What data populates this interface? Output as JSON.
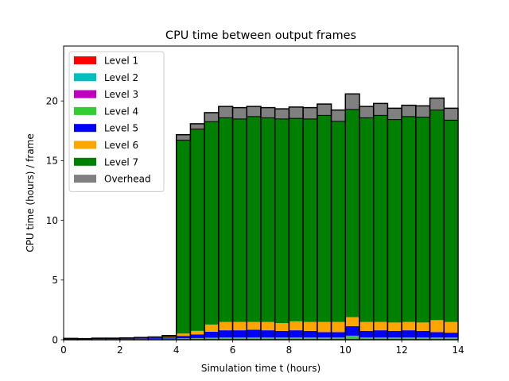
{
  "chart_data": {
    "type": "bar",
    "stacked": true,
    "title": "CPU time between output frames",
    "xlabel": "Simulation time t (hours)",
    "ylabel": "CPU time (hours) / frame",
    "xlim": [
      0,
      14
    ],
    "ylim": [
      0,
      24.6
    ],
    "xticks": [
      "0",
      "2",
      "4",
      "6",
      "8",
      "10",
      "12",
      "14"
    ],
    "xtick_values": [
      0,
      2,
      4,
      6,
      8,
      10,
      12,
      14
    ],
    "yticks": [
      "0",
      "5",
      "10",
      "15",
      "20"
    ],
    "ytick_values": [
      0,
      5,
      10,
      15,
      20
    ],
    "grid": false,
    "legend_position": "upper-left",
    "bin_width": 0.5,
    "x": [
      0,
      0.5,
      1,
      1.5,
      2,
      2.5,
      3,
      3.5,
      4,
      4.5,
      5,
      5.5,
      6,
      6.5,
      7,
      7.5,
      8,
      8.5,
      9,
      9.5,
      10,
      10.5,
      11,
      11.5,
      12,
      12.5,
      13,
      13.5
    ],
    "series": [
      {
        "name": "Level 1",
        "color": "#ff0000",
        "values": [
          0.03,
          0.02,
          0.03,
          0.03,
          0.03,
          0.04,
          0.04,
          0.05,
          0.05,
          0.05,
          0.05,
          0.05,
          0.05,
          0.05,
          0.05,
          0.05,
          0.05,
          0.05,
          0.05,
          0.05,
          0.05,
          0.05,
          0.05,
          0.05,
          0.05,
          0.05,
          0.05,
          0.05
        ]
      },
      {
        "name": "Level 2",
        "color": "#00bfbf",
        "values": [
          0.01,
          0.01,
          0.01,
          0.01,
          0.01,
          0.01,
          0.01,
          0.01,
          0.02,
          0.02,
          0.02,
          0.02,
          0.02,
          0.02,
          0.02,
          0.02,
          0.02,
          0.02,
          0.02,
          0.02,
          0.02,
          0.02,
          0.02,
          0.02,
          0.02,
          0.02,
          0.02,
          0.02
        ]
      },
      {
        "name": "Level 3",
        "color": "#bf00bf",
        "values": [
          0.01,
          0.01,
          0.01,
          0.01,
          0.01,
          0.01,
          0.01,
          0.01,
          0.02,
          0.02,
          0.02,
          0.02,
          0.02,
          0.02,
          0.02,
          0.02,
          0.02,
          0.02,
          0.02,
          0.02,
          0.02,
          0.02,
          0.02,
          0.02,
          0.02,
          0.02,
          0.02,
          0.02
        ]
      },
      {
        "name": "Level 4",
        "color": "#32cd32",
        "values": [
          0.01,
          0.01,
          0.01,
          0.01,
          0.01,
          0.01,
          0.01,
          0.02,
          0.03,
          0.05,
          0.08,
          0.1,
          0.1,
          0.1,
          0.1,
          0.1,
          0.1,
          0.1,
          0.1,
          0.1,
          0.25,
          0.1,
          0.1,
          0.1,
          0.1,
          0.1,
          0.1,
          0.1
        ]
      },
      {
        "name": "Level 5",
        "color": "#0000ff",
        "values": [
          0.01,
          0.01,
          0.02,
          0.02,
          0.03,
          0.04,
          0.06,
          0.1,
          0.2,
          0.3,
          0.5,
          0.6,
          0.6,
          0.65,
          0.6,
          0.55,
          0.6,
          0.55,
          0.45,
          0.45,
          0.8,
          0.55,
          0.6,
          0.55,
          0.6,
          0.55,
          0.45,
          0.4
        ]
      },
      {
        "name": "Level 6",
        "color": "#ffa500",
        "values": [
          0.01,
          0.01,
          0.02,
          0.02,
          0.03,
          0.04,
          0.05,
          0.08,
          0.2,
          0.3,
          0.6,
          0.7,
          0.7,
          0.65,
          0.7,
          0.65,
          0.75,
          0.75,
          0.85,
          0.85,
          0.75,
          0.75,
          0.7,
          0.7,
          0.7,
          0.7,
          1.0,
          0.9
        ]
      },
      {
        "name": "Level 7",
        "color": "#008000",
        "values": [
          0.0,
          0.0,
          0.0,
          0.0,
          0.0,
          0.0,
          0.0,
          0.0,
          16.2,
          16.9,
          17.0,
          17.1,
          17.0,
          17.2,
          17.1,
          17.1,
          17.0,
          17.0,
          17.3,
          16.8,
          17.4,
          17.1,
          17.3,
          17.0,
          17.2,
          17.2,
          17.6,
          16.9
        ]
      },
      {
        "name": "Overhead",
        "color": "#808080",
        "values": [
          0.03,
          0.02,
          0.03,
          0.03,
          0.03,
          0.04,
          0.05,
          0.08,
          0.45,
          0.45,
          0.75,
          0.95,
          0.95,
          0.85,
          0.85,
          0.85,
          0.95,
          0.95,
          0.95,
          0.95,
          1.3,
          0.95,
          1.0,
          0.95,
          0.95,
          0.95,
          1.0,
          1.0
        ]
      }
    ]
  }
}
